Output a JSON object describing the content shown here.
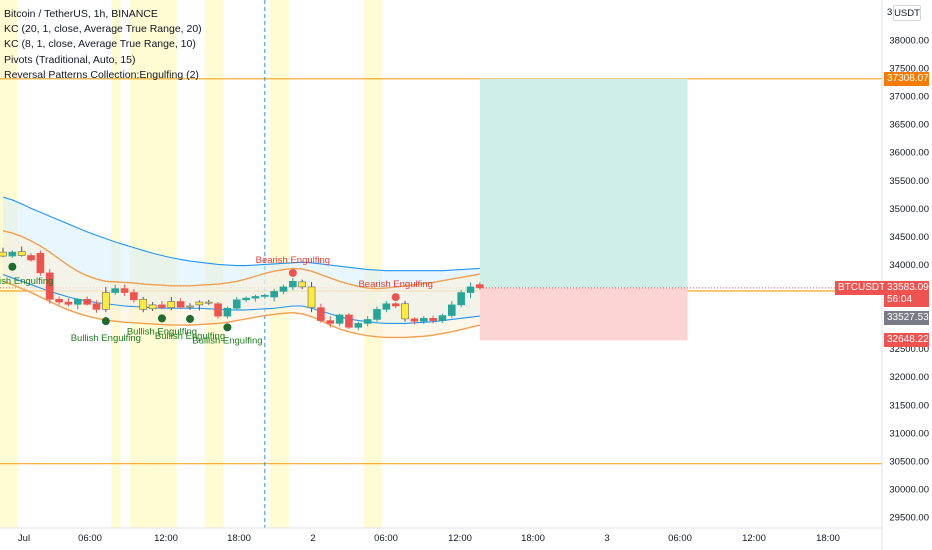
{
  "legend": {
    "symbol": "Bitcoin / TetherUS, 1h, BINANCE",
    "kc20": "KC (20, 1, close, Average True Range, 20)",
    "kc8": "KC (8, 1, close, Average True Range, 10)",
    "pivots": "Pivots (Traditional, Auto, 15)",
    "patterns": "Reversal Patterns Collection:Engulfing (2)"
  },
  "currency_button": "USDT",
  "tags": {
    "target": "37308.07",
    "symbol": "BTCUSDT",
    "price": "33583.09",
    "countdown": "56:04",
    "support": "33527.53",
    "stop": "32648.22"
  },
  "colors": {
    "up": "#26a69a",
    "down": "#ef5350",
    "hollow": "#ffeb3b",
    "level": "#f5a623",
    "tag_orange": "#f57c00",
    "tag_red": "#ef5350",
    "tag_gray": "#787b86",
    "kc_outer": "#2196f3",
    "kc_inner": "#f0a050",
    "bull_label": "#1b7d1b",
    "bear_label": "#e53935"
  },
  "chart_data": {
    "type": "candlestick",
    "symbol": "BTCUSDT",
    "interval": "1h",
    "ylim": [
      29300,
      38300
    ],
    "y_ticks": [
      "38000.00",
      "37500.00",
      "37000.00",
      "36500.00",
      "36000.00",
      "35500.00",
      "35000.00",
      "34500.00",
      "34000.00",
      "33500.00",
      "33000.00",
      "32500.00",
      "32000.00",
      "31500.00",
      "31000.00",
      "30500.00",
      "30000.00",
      "29500.00"
    ],
    "x_ticks": [
      "Jul",
      "06:00",
      "12:00",
      "18:00",
      "2",
      "06:00",
      "12:00",
      "18:00",
      "3",
      "06:00",
      "12:00",
      "18:00"
    ],
    "candles": [
      {
        "o": 34220,
        "h": 34300,
        "l": 34130,
        "c": 34150
      },
      {
        "o": 34150,
        "h": 34250,
        "l": 34120,
        "c": 34220
      },
      {
        "o": 34230,
        "h": 34320,
        "l": 34140,
        "c": 34160
      },
      {
        "o": 34160,
        "h": 34200,
        "l": 34050,
        "c": 34080
      },
      {
        "o": 34200,
        "h": 34250,
        "l": 33800,
        "c": 33850
      },
      {
        "o": 33850,
        "h": 33920,
        "l": 33300,
        "c": 33380
      },
      {
        "o": 33380,
        "h": 33430,
        "l": 33280,
        "c": 33330
      },
      {
        "o": 33330,
        "h": 33400,
        "l": 33250,
        "c": 33290
      },
      {
        "o": 33290,
        "h": 33400,
        "l": 33200,
        "c": 33380
      },
      {
        "o": 33380,
        "h": 33430,
        "l": 33270,
        "c": 33290
      },
      {
        "o": 33300,
        "h": 33360,
        "l": 33140,
        "c": 33200
      },
      {
        "o": 33200,
        "h": 33600,
        "l": 33150,
        "c": 33500
      },
      {
        "o": 33500,
        "h": 33640,
        "l": 33460,
        "c": 33570
      },
      {
        "o": 33570,
        "h": 33640,
        "l": 33440,
        "c": 33500
      },
      {
        "o": 33500,
        "h": 33560,
        "l": 33320,
        "c": 33370
      },
      {
        "o": 33380,
        "h": 33420,
        "l": 33150,
        "c": 33200
      },
      {
        "o": 33210,
        "h": 33330,
        "l": 33170,
        "c": 33280
      },
      {
        "o": 33280,
        "h": 33350,
        "l": 33200,
        "c": 33230
      },
      {
        "o": 33230,
        "h": 33420,
        "l": 33190,
        "c": 33340
      },
      {
        "o": 33340,
        "h": 33400,
        "l": 33220,
        "c": 33240
      },
      {
        "o": 33240,
        "h": 33310,
        "l": 33190,
        "c": 33260
      },
      {
        "o": 33280,
        "h": 33360,
        "l": 33180,
        "c": 33330
      },
      {
        "o": 33330,
        "h": 33370,
        "l": 33280,
        "c": 33310
      },
      {
        "o": 33300,
        "h": 33330,
        "l": 33040,
        "c": 33080
      },
      {
        "o": 33080,
        "h": 33250,
        "l": 33040,
        "c": 33220
      },
      {
        "o": 33220,
        "h": 33420,
        "l": 33200,
        "c": 33370
      },
      {
        "o": 33370,
        "h": 33430,
        "l": 33330,
        "c": 33400
      },
      {
        "o": 33400,
        "h": 33460,
        "l": 33340,
        "c": 33430
      },
      {
        "o": 33430,
        "h": 33480,
        "l": 33390,
        "c": 33450
      },
      {
        "o": 33420,
        "h": 33560,
        "l": 33340,
        "c": 33520
      },
      {
        "o": 33520,
        "h": 33640,
        "l": 33470,
        "c": 33600
      },
      {
        "o": 33600,
        "h": 33760,
        "l": 33540,
        "c": 33700
      },
      {
        "o": 33690,
        "h": 33730,
        "l": 33560,
        "c": 33600
      },
      {
        "o": 33600,
        "h": 33690,
        "l": 33150,
        "c": 33230
      },
      {
        "o": 33230,
        "h": 33300,
        "l": 32960,
        "c": 33000
      },
      {
        "o": 33000,
        "h": 33080,
        "l": 32880,
        "c": 32950
      },
      {
        "o": 32950,
        "h": 33120,
        "l": 32900,
        "c": 33100
      },
      {
        "o": 33100,
        "h": 33130,
        "l": 32850,
        "c": 32880
      },
      {
        "o": 32880,
        "h": 32980,
        "l": 32830,
        "c": 32950
      },
      {
        "o": 32950,
        "h": 33080,
        "l": 32900,
        "c": 33020
      },
      {
        "o": 33020,
        "h": 33250,
        "l": 32980,
        "c": 33200
      },
      {
        "o": 33200,
        "h": 33350,
        "l": 33150,
        "c": 33300
      },
      {
        "o": 33300,
        "h": 33330,
        "l": 33220,
        "c": 33260
      },
      {
        "o": 33300,
        "h": 33350,
        "l": 32980,
        "c": 33030
      },
      {
        "o": 33030,
        "h": 33060,
        "l": 32930,
        "c": 32990
      },
      {
        "o": 32990,
        "h": 33080,
        "l": 32940,
        "c": 33040
      },
      {
        "o": 33040,
        "h": 33090,
        "l": 32950,
        "c": 33000
      },
      {
        "o": 33000,
        "h": 33120,
        "l": 32960,
        "c": 33090
      },
      {
        "o": 33090,
        "h": 33350,
        "l": 33050,
        "c": 33280
      },
      {
        "o": 33280,
        "h": 33550,
        "l": 33240,
        "c": 33500
      },
      {
        "o": 33500,
        "h": 33680,
        "l": 33400,
        "c": 33600
      },
      {
        "o": 33640,
        "h": 33680,
        "l": 33550,
        "c": 33583
      }
    ],
    "hollow_candles": [
      0,
      2,
      11,
      15,
      16,
      18,
      20,
      21,
      22,
      32,
      33,
      43
    ],
    "signals": [
      {
        "label": "Bullish Engulfing",
        "type": "bull",
        "candle": 1,
        "labelled": false
      },
      {
        "label": "Bullish Engulfing",
        "type": "bull",
        "candle": 11
      },
      {
        "label": "Bullish Engulfing",
        "type": "bull",
        "candle": 17
      },
      {
        "label": "Bullish Engulfing",
        "type": "bull",
        "candle": 20
      },
      {
        "label": "Bullish Engulfing",
        "type": "bull",
        "candle": 24
      },
      {
        "label": "Bearish Engulfing",
        "type": "bear",
        "candle": 31
      },
      {
        "label": "Bearish Engulfing",
        "type": "bear",
        "candle": 42
      }
    ],
    "left_cut_label": "ish Engulfing",
    "kc20_upper": [
      35200,
      35150,
      35080,
      35000,
      34930,
      34860,
      34790,
      34720,
      34650,
      34580,
      34520,
      34460,
      34400,
      34350,
      34300,
      34250,
      34200,
      34160,
      34120,
      34090,
      34060,
      34040,
      34020,
      34000,
      33990,
      33980,
      33980,
      33990,
      34000,
      34010,
      34020,
      34030,
      34040,
      34030,
      34010,
      33990,
      33970,
      33950,
      33930,
      33910,
      33900,
      33890,
      33890,
      33890,
      33890,
      33890,
      33890,
      33890,
      33900,
      33910,
      33920,
      33930
    ],
    "kc20_lower": [
      33820,
      33760,
      33700,
      33640,
      33580,
      33520,
      33470,
      33420,
      33380,
      33350,
      33320,
      33300,
      33280,
      33260,
      33250,
      33240,
      33230,
      33220,
      33220,
      33220,
      33220,
      33220,
      33210,
      33200,
      33190,
      33190,
      33190,
      33200,
      33210,
      33220,
      33240,
      33260,
      33260,
      33220,
      33170,
      33120,
      33070,
      33030,
      33000,
      32980,
      32960,
      32950,
      32950,
      32950,
      32960,
      32970,
      32980,
      33000,
      33020,
      33040,
      33060,
      33080
    ],
    "kc8_upper": [
      34600,
      34560,
      34500,
      34420,
      34330,
      34220,
      34100,
      33980,
      33880,
      33800,
      33740,
      33700,
      33690,
      33680,
      33670,
      33650,
      33640,
      33630,
      33620,
      33620,
      33620,
      33630,
      33640,
      33650,
      33670,
      33700,
      33740,
      33790,
      33840,
      33880,
      33910,
      33930,
      33920,
      33880,
      33820,
      33760,
      33700,
      33650,
      33610,
      33580,
      33570,
      33580,
      33600,
      33620,
      33640,
      33660,
      33680,
      33710,
      33740,
      33770,
      33800,
      33830
    ],
    "kc8_lower": [
      33700,
      33640,
      33570,
      33500,
      33420,
      33340,
      33260,
      33190,
      33130,
      33080,
      33040,
      33010,
      32990,
      32970,
      32960,
      32950,
      32940,
      32930,
      32920,
      32920,
      32920,
      32930,
      32940,
      32950,
      32970,
      33000,
      33030,
      33060,
      33090,
      33110,
      33130,
      33140,
      33120,
      33070,
      33000,
      32920,
      32850,
      32800,
      32760,
      32730,
      32710,
      32700,
      32700,
      32700,
      32710,
      32720,
      32740,
      32770,
      32800,
      32840,
      32880,
      32920
    ],
    "levels": [
      {
        "price": 37308.07,
        "color": "#f5a623"
      },
      {
        "price": 33527.53,
        "color": "#f5a623"
      },
      {
        "price": 30450,
        "color": "#f5a623"
      }
    ],
    "current_price": 33583.09,
    "position": {
      "entry": 33583.09,
      "target": 37308.07,
      "stop": 32648.22,
      "start_hour": 51,
      "end_hour": 73
    },
    "session_bands_hours": [
      [
        0,
        2
      ],
      [
        12,
        13
      ],
      [
        14,
        19
      ],
      [
        22,
        24
      ],
      [
        29,
        31
      ],
      [
        39,
        41
      ]
    ],
    "crosshair_hour": 28
  }
}
